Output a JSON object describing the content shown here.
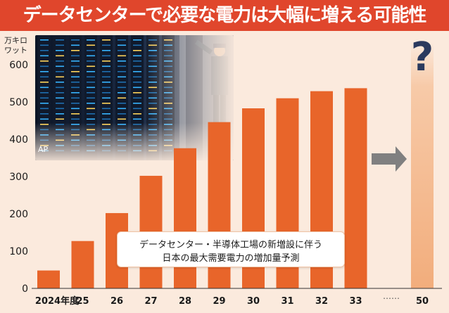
{
  "title": "データセンターで必要な電力は大幅に増える可能性",
  "photo": {
    "credit": "AP"
  },
  "caption": {
    "line1": "データセンター・半導体工場の新増設に伴う",
    "line2": "日本の最大需要電力の増加量予測"
  },
  "colors": {
    "title_bg": "#e0462c",
    "bar": "#e8652a",
    "bar_light": "#f4b98f",
    "background": "#fbeadd",
    "arrow": "#808080",
    "question": "#2b3a5e"
  },
  "chart_data": {
    "type": "bar",
    "unit_label": [
      "万キロ",
      "ワット"
    ],
    "categories": [
      "2024年度",
      "25",
      "26",
      "27",
      "28",
      "29",
      "30",
      "31",
      "32",
      "33",
      "50"
    ],
    "values": [
      48,
      127,
      202,
      302,
      376,
      446,
      483,
      510,
      529,
      537,
      null
    ],
    "final_label": "?",
    "ellipsis": "……",
    "yticks": [
      0,
      100,
      200,
      300,
      400,
      500,
      600
    ],
    "ylim": [
      0,
      650
    ],
    "grid": false
  }
}
